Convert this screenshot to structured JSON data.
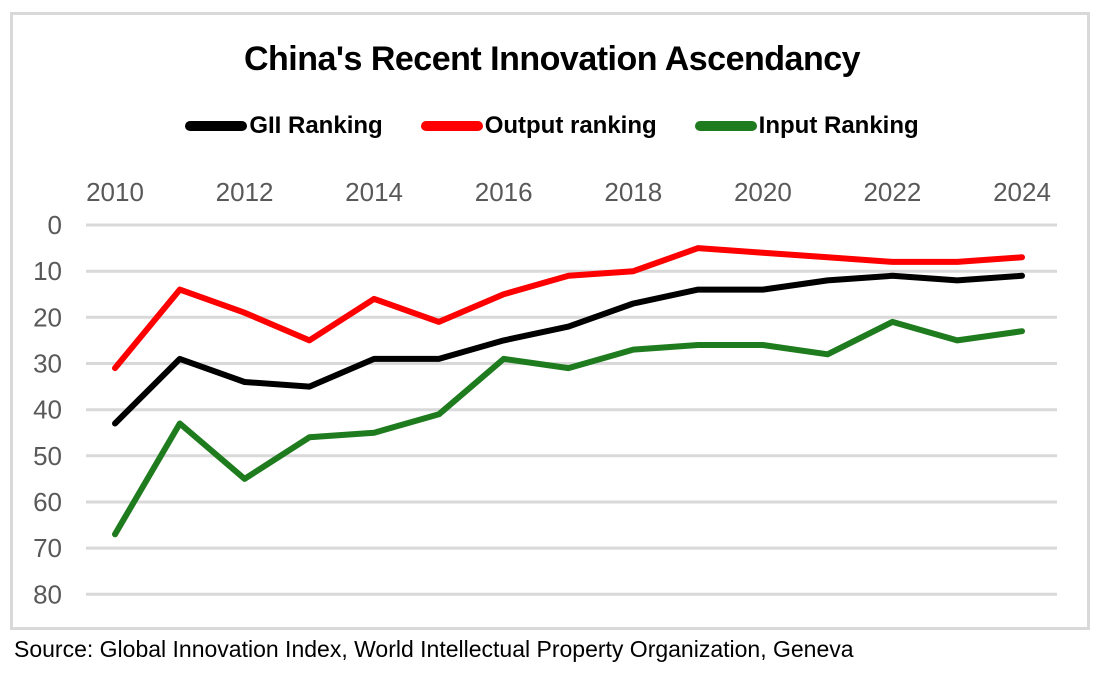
{
  "title": "China's Recent Innovation Ascendancy",
  "source": "Source: Global Innovation Index, World Intellectual Property Organization, Geneva",
  "colors": {
    "gii": "#000000",
    "output": "#fe0000",
    "input": "#1e7b1e",
    "grid": "#d9d9d9",
    "axis_label": "#595959",
    "border": "#d9d9d9"
  },
  "chart_data": {
    "type": "line",
    "title": "China's Recent Innovation Ascendancy",
    "x": [
      2010,
      2011,
      2012,
      2013,
      2014,
      2015,
      2016,
      2017,
      2018,
      2019,
      2020,
      2021,
      2022,
      2023,
      2024
    ],
    "x_tick_labels": [
      "2010",
      "2012",
      "2014",
      "2016",
      "2018",
      "2020",
      "2022",
      "2024"
    ],
    "y_ticks": [
      0,
      10,
      20,
      30,
      40,
      50,
      60,
      70,
      80
    ],
    "ylim": [
      0,
      80
    ],
    "y_axis_inverted": true,
    "grid": "horizontal",
    "legend_position": "top",
    "series": [
      {
        "name": "GII Ranking",
        "color_key": "gii",
        "values": [
          43,
          29,
          34,
          35,
          29,
          29,
          25,
          22,
          17,
          14,
          14,
          12,
          11,
          12,
          11
        ]
      },
      {
        "name": "Output ranking",
        "color_key": "output",
        "values": [
          31,
          14,
          19,
          25,
          16,
          21,
          15,
          11,
          10,
          5,
          6,
          7,
          8,
          8,
          7
        ]
      },
      {
        "name": "Input Ranking",
        "color_key": "input",
        "values": [
          67,
          43,
          55,
          46,
          45,
          41,
          29,
          31,
          27,
          26,
          26,
          28,
          21,
          25,
          23
        ]
      }
    ]
  }
}
